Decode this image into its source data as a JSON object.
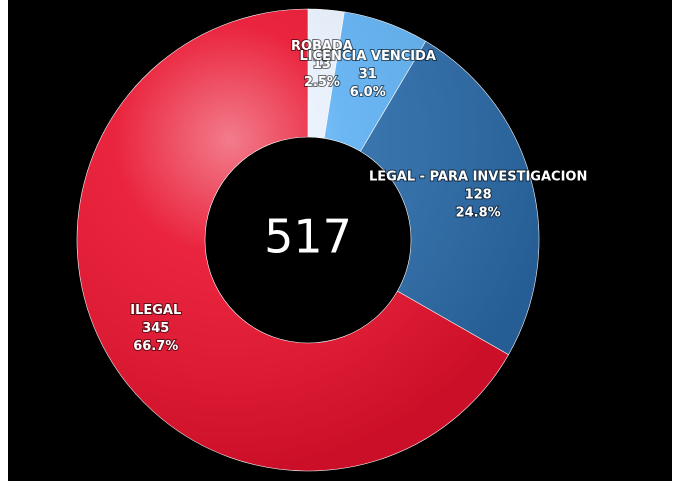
{
  "chart_data": {
    "type": "donut",
    "total": 517,
    "categories": [
      "ROBADA",
      "LICENCIA VENCIDA",
      "LEGAL - PARA INVESTIGACION",
      "ILEGAL"
    ],
    "values": [
      13,
      31,
      128,
      345
    ],
    "percent_labels": [
      "2.5%",
      "6.0%",
      "24.8%",
      "66.7%"
    ],
    "colors": [
      "#e6effb",
      "#5eb0f2",
      "#2a6aa8",
      "#e8112d"
    ]
  }
}
